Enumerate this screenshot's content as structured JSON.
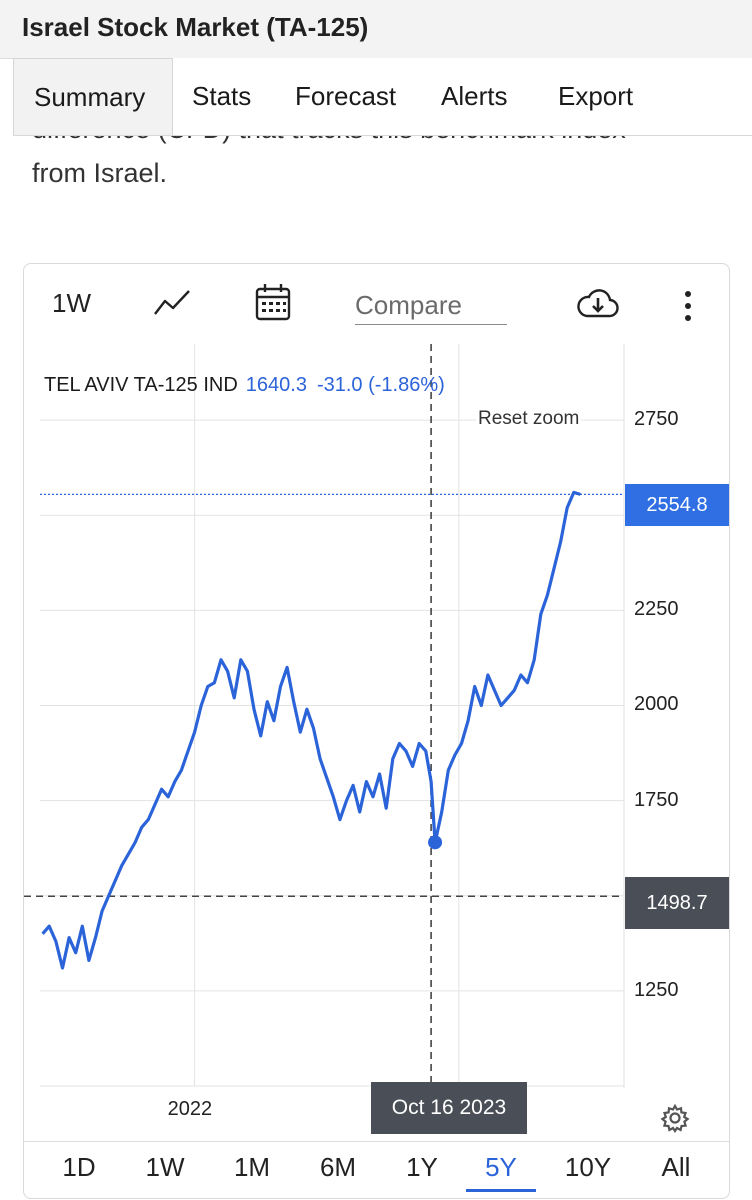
{
  "header": {
    "title": "Israel Stock Market (TA-125)"
  },
  "tabs": [
    {
      "label": "Summary",
      "active": true
    },
    {
      "label": "Stats",
      "active": false
    },
    {
      "label": "Forecast",
      "active": false
    },
    {
      "label": "Alerts",
      "active": false
    },
    {
      "label": "Export",
      "active": false
    }
  ],
  "intro": {
    "partial_line": "difference (CFD) that tracks this benchmark index",
    "line2": "from Israel."
  },
  "chart_toolbar": {
    "interval_label": "1W",
    "compare_placeholder": "Compare",
    "icons": [
      "line-chart-icon",
      "calendar-icon",
      "download-cloud-icon",
      "more-vertical-icon"
    ]
  },
  "chart_header": {
    "series_name": "TEL AVIV TA-125 IND",
    "value": "1640.3",
    "change": "-31.0 (-1.86%)",
    "reset_zoom": "Reset zoom"
  },
  "crosshair": {
    "date_label": "Oct 16 2023",
    "value_label": "1498.7"
  },
  "last_value_label": "2554.8",
  "range_selector": [
    {
      "label": "1D",
      "active": false
    },
    {
      "label": "1W",
      "active": false
    },
    {
      "label": "1M",
      "active": false
    },
    {
      "label": "6M",
      "active": false
    },
    {
      "label": "1Y",
      "active": false
    },
    {
      "label": "5Y",
      "active": true
    },
    {
      "label": "10Y",
      "active": false
    },
    {
      "label": "All",
      "active": false
    }
  ],
  "colors": {
    "line": "#2b63d9",
    "crosshair_label_bg": "#4a4f57",
    "last_value_bg": "#2f6fe3"
  },
  "chart_data": {
    "type": "line",
    "series": [
      {
        "name": "TEL AVIV TA-125 IND",
        "x": [
          2020.85,
          2020.9,
          2020.95,
          2021.0,
          2021.05,
          2021.1,
          2021.15,
          2021.2,
          2021.25,
          2021.3,
          2021.35,
          2021.4,
          2021.45,
          2021.5,
          2021.55,
          2021.6,
          2021.65,
          2021.7,
          2021.75,
          2021.8,
          2021.85,
          2021.9,
          2021.95,
          2022.0,
          2022.05,
          2022.1,
          2022.15,
          2022.2,
          2022.25,
          2022.3,
          2022.35,
          2022.4,
          2022.45,
          2022.5,
          2022.55,
          2022.6,
          2022.65,
          2022.7,
          2022.75,
          2022.8,
          2022.85,
          2022.9,
          2022.95,
          2023.0,
          2023.05,
          2023.1,
          2023.15,
          2023.2,
          2023.25,
          2023.3,
          2023.35,
          2023.4,
          2023.45,
          2023.5,
          2023.55,
          2023.6,
          2023.65,
          2023.7,
          2023.75,
          2023.79,
          2023.82,
          2023.87,
          2023.92,
          2023.97,
          2024.02,
          2024.07,
          2024.12,
          2024.17,
          2024.22,
          2024.27,
          2024.32,
          2024.37,
          2024.42,
          2024.47,
          2024.52,
          2024.57,
          2024.62,
          2024.67,
          2024.72,
          2024.77,
          2024.82,
          2024.87,
          2024.92
        ],
        "values": [
          1400,
          1420,
          1380,
          1310,
          1390,
          1350,
          1420,
          1330,
          1390,
          1460,
          1500,
          1540,
          1580,
          1610,
          1640,
          1680,
          1700,
          1740,
          1780,
          1760,
          1800,
          1830,
          1880,
          1930,
          2000,
          2050,
          2060,
          2120,
          2090,
          2020,
          2120,
          2090,
          1990,
          1920,
          2010,
          1960,
          2050,
          2100,
          2010,
          1930,
          1990,
          1940,
          1860,
          1810,
          1760,
          1700,
          1750,
          1790,
          1720,
          1800,
          1760,
          1820,
          1730,
          1860,
          1900,
          1880,
          1840,
          1900,
          1880,
          1800,
          1640,
          1720,
          1830,
          1870,
          1900,
          1960,
          2050,
          2000,
          2080,
          2040,
          2000,
          2020,
          2040,
          2080,
          2060,
          2120,
          2240,
          2290,
          2360,
          2430,
          2520,
          2560,
          2554.8
        ]
      }
    ],
    "xticks": [
      {
        "value": 2022,
        "label": "2022"
      }
    ],
    "yticks": [
      1250,
      1750,
      2000,
      2250,
      2750
    ],
    "ylim": [
      1000,
      2950
    ],
    "xlim": [
      2020.83,
      2025.25
    ],
    "crosshair": {
      "x": 2023.79,
      "y": 1498.7
    },
    "highlight_point": {
      "x": 2023.82,
      "y": 1640.3
    },
    "last_value": 2554.8,
    "grid": true,
    "ylabel": "",
    "xlabel": ""
  }
}
